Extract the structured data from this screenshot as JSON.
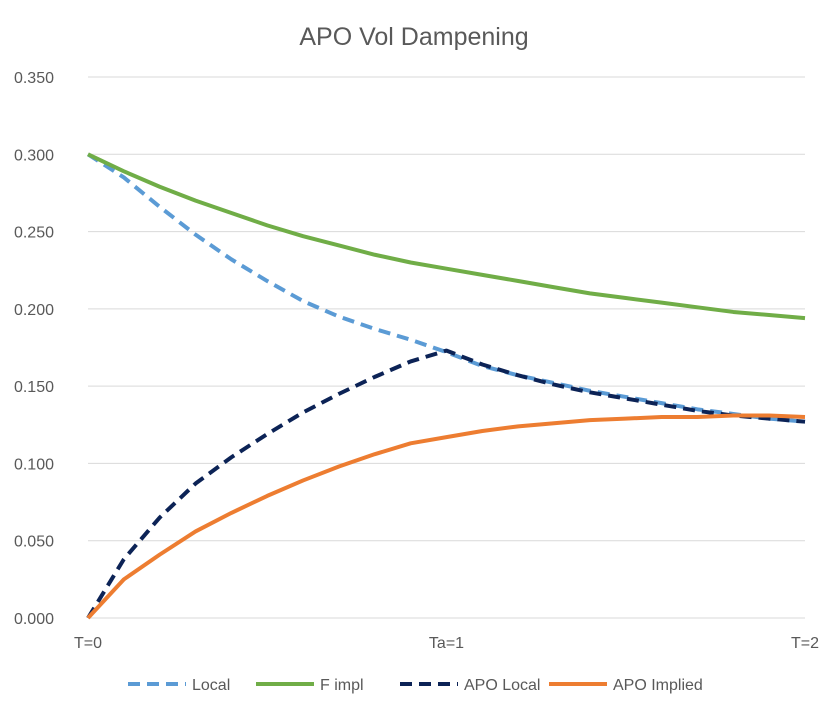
{
  "chart_data": {
    "type": "line",
    "title": "APO Vol Dampening",
    "xlabel": "",
    "ylabel": "",
    "ylim": [
      0,
      0.35
    ],
    "y_ticks": [
      "0.000",
      "0.050",
      "0.100",
      "0.150",
      "0.200",
      "0.250",
      "0.300",
      "0.350"
    ],
    "y_tick_values": [
      0,
      0.05,
      0.1,
      0.15,
      0.2,
      0.25,
      0.3,
      0.35
    ],
    "x_ticks": [
      "T=0",
      "Ta=1",
      "T=2"
    ],
    "x_tick_values": [
      0,
      1,
      2
    ],
    "xlim": [
      0,
      2
    ],
    "grid": true,
    "legend_position": "bottom",
    "series": [
      {
        "name": "Local",
        "color": "#5b9bd5",
        "dash": "dashed",
        "x": [
          0,
          0.1,
          0.2,
          0.3,
          0.4,
          0.5,
          0.6,
          0.7,
          0.8,
          0.9,
          1.0,
          1.1,
          1.2,
          1.3,
          1.4,
          1.5,
          1.6,
          1.7,
          1.8,
          1.9,
          2.0
        ],
        "values": [
          0.3,
          0.285,
          0.266,
          0.248,
          0.232,
          0.218,
          0.205,
          0.195,
          0.187,
          0.18,
          0.172,
          0.163,
          0.157,
          0.152,
          0.147,
          0.143,
          0.139,
          0.135,
          0.132,
          0.129,
          0.127
        ]
      },
      {
        "name": "F impl",
        "color": "#70ad47",
        "dash": "solid",
        "x": [
          0,
          0.1,
          0.2,
          0.3,
          0.4,
          0.5,
          0.6,
          0.7,
          0.8,
          0.9,
          1.0,
          1.1,
          1.2,
          1.3,
          1.4,
          1.5,
          1.6,
          1.7,
          1.8,
          1.9,
          2.0
        ],
        "values": [
          0.3,
          0.289,
          0.279,
          0.27,
          0.262,
          0.254,
          0.247,
          0.241,
          0.235,
          0.23,
          0.226,
          0.222,
          0.218,
          0.214,
          0.21,
          0.207,
          0.204,
          0.201,
          0.198,
          0.196,
          0.194
        ]
      },
      {
        "name": "APO Local",
        "color": "#0c2356",
        "dash": "dashed",
        "x": [
          0,
          0.1,
          0.2,
          0.3,
          0.4,
          0.5,
          0.6,
          0.7,
          0.8,
          0.9,
          1.0,
          1.1,
          1.2,
          1.3,
          1.4,
          1.5,
          1.6,
          1.7,
          1.8,
          1.9,
          2.0
        ],
        "values": [
          0.0,
          0.038,
          0.065,
          0.087,
          0.104,
          0.119,
          0.133,
          0.145,
          0.156,
          0.166,
          0.173,
          0.164,
          0.157,
          0.151,
          0.146,
          0.142,
          0.138,
          0.134,
          0.131,
          0.129,
          0.127
        ]
      },
      {
        "name": "APO Implied",
        "color": "#ed7d31",
        "dash": "solid",
        "x": [
          0,
          0.1,
          0.2,
          0.3,
          0.4,
          0.5,
          0.6,
          0.7,
          0.8,
          0.9,
          1.0,
          1.1,
          1.2,
          1.3,
          1.4,
          1.5,
          1.6,
          1.7,
          1.8,
          1.9,
          2.0
        ],
        "values": [
          0.0,
          0.025,
          0.041,
          0.056,
          0.068,
          0.079,
          0.089,
          0.098,
          0.106,
          0.113,
          0.117,
          0.121,
          0.124,
          0.126,
          0.128,
          0.129,
          0.13,
          0.13,
          0.131,
          0.131,
          0.13
        ]
      }
    ]
  }
}
